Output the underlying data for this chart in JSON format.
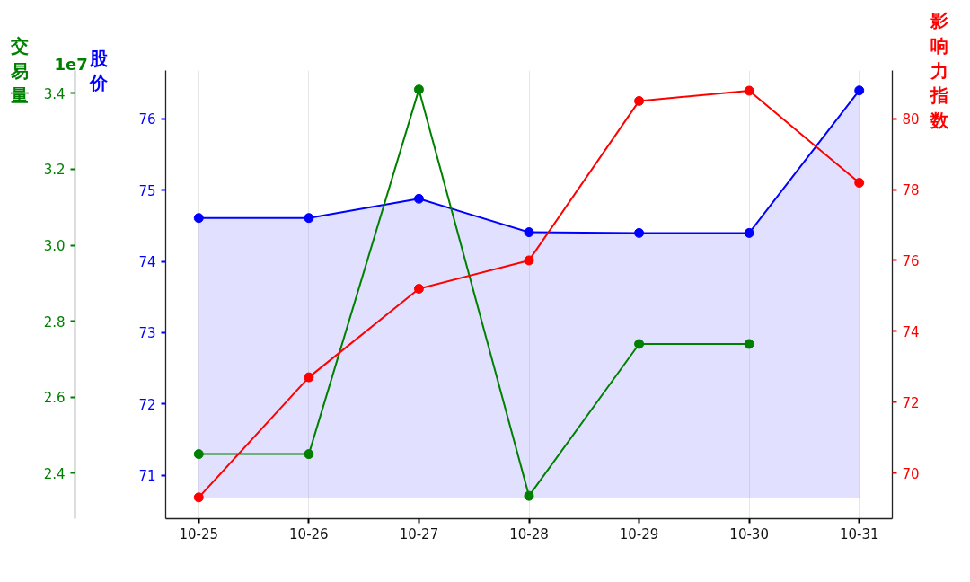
{
  "chart_data": {
    "type": "line",
    "categories": [
      "10-25",
      "10-26",
      "10-27",
      "10-28",
      "10-29",
      "10-30",
      "10-31"
    ],
    "series": [
      {
        "color": "#0000ff",
        "axis": "y",
        "values": [
          74.61,
          74.61,
          74.88,
          74.41,
          74.4,
          74.4,
          76.4
        ],
        "lower": [
          70.68,
          70.68,
          70.68,
          70.68,
          70.68,
          70.68,
          70.68
        ],
        "upper": [
          74.61,
          74.61,
          74.88,
          74.41,
          74.4,
          74.4,
          76.4
        ]
      },
      {
        "color": "#008000",
        "axis": "y3",
        "values": [
          2.45,
          2.45,
          3.41,
          2.34,
          2.74,
          2.74,
          null
        ]
      },
      {
        "color": "#ff0000",
        "axis": "y2",
        "values": [
          69.31,
          72.7,
          75.2,
          76.0,
          80.5,
          80.79,
          78.19
        ]
      }
    ],
    "ylabel": "股价",
    "y2label": "影响力指数",
    "y3label": "交易量",
    "ylim": [
      70.39,
      76.68
    ],
    "yticks": [
      71,
      72,
      73,
      74,
      75,
      76
    ],
    "y2lim": [
      68.71,
      81.36
    ],
    "y2ticks": [
      70,
      72,
      74,
      76,
      78,
      80
    ],
    "y3lim": [
      2.28,
      3.46
    ],
    "y3ticks": [
      {
        "value": 2.4,
        "label": "2.4"
      },
      {
        "value": 2.6,
        "label": "2.6"
      },
      {
        "value": 2.8,
        "label": "2.8"
      },
      {
        "value": 3.0,
        "label": "3.0"
      },
      {
        "value": 3.2,
        "label": "3.2"
      },
      {
        "value": 3.4,
        "label": "3.4"
      }
    ],
    "annotations": [
      "1e7"
    ],
    "grid": "x",
    "marker": "circle",
    "line_style": "solid"
  }
}
